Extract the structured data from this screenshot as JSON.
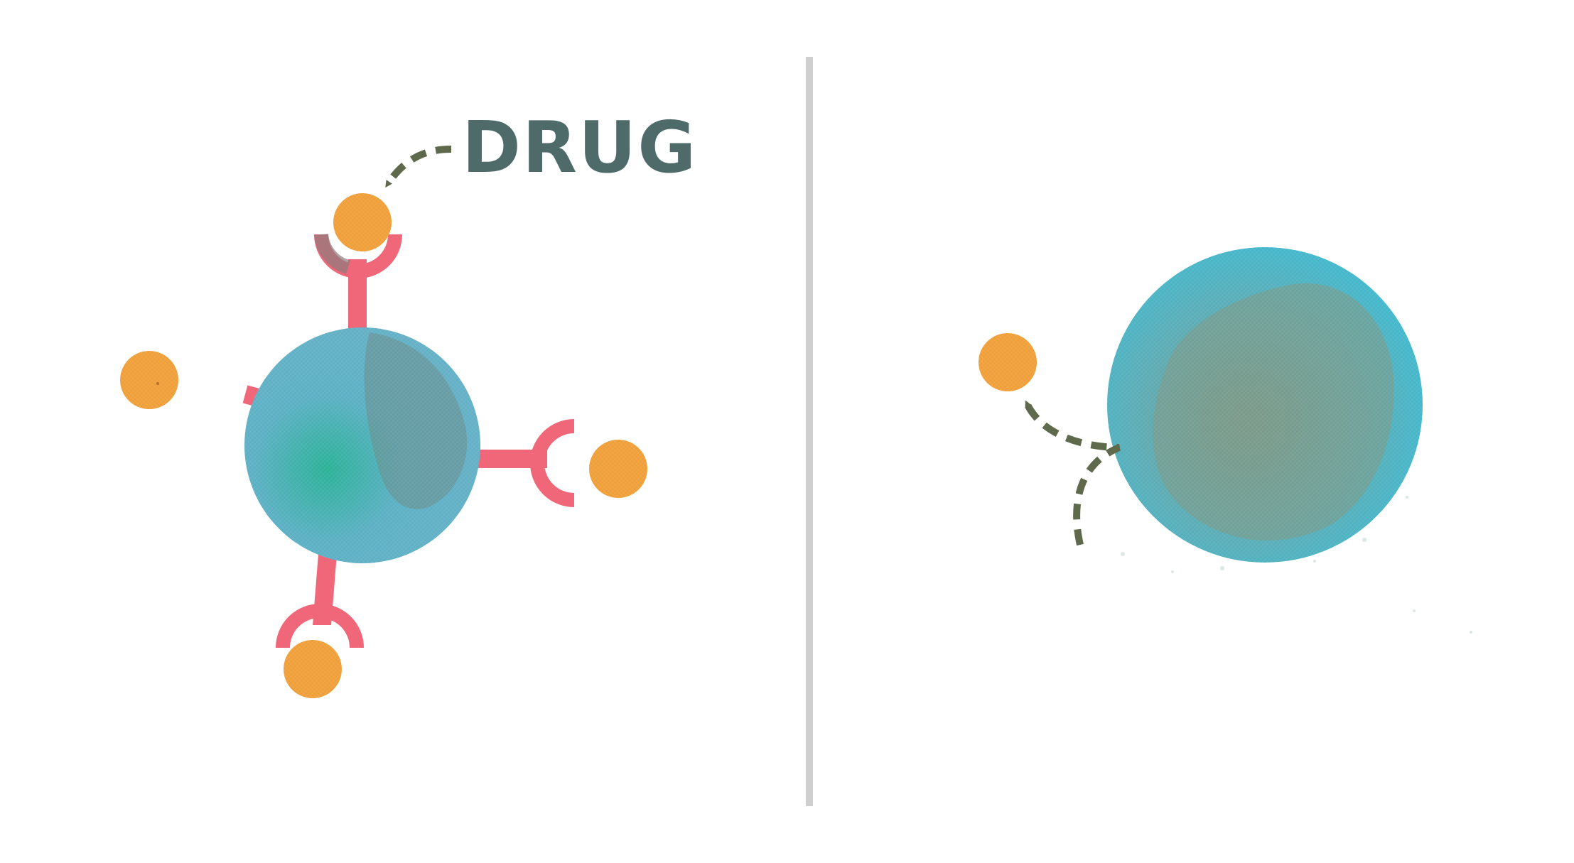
{
  "label": "DRUG",
  "colors": {
    "drug": "#F2A23C",
    "drug_speck": "#B9702A",
    "cell_main": "#5FB3C7",
    "cell_teal": "#2EB49A",
    "cell_dark": "#6E8E8C",
    "cell_right": "#3DBFD8",
    "cell_right_inner": "#7E9C8A",
    "receptor": "#F0677A",
    "receptor_cup_dark": "#8B7C7C",
    "arrow": "#5E6A4B",
    "label_text": "#4E6B6A",
    "divider": "#CFCFCF"
  },
  "left_panel": {
    "description_name": "cell-with-receptors",
    "receptor_count": 4,
    "drug_count": 4
  },
  "right_panel": {
    "description_name": "cell-without-receptors",
    "receptor_count": 0,
    "drug_count": 1
  }
}
